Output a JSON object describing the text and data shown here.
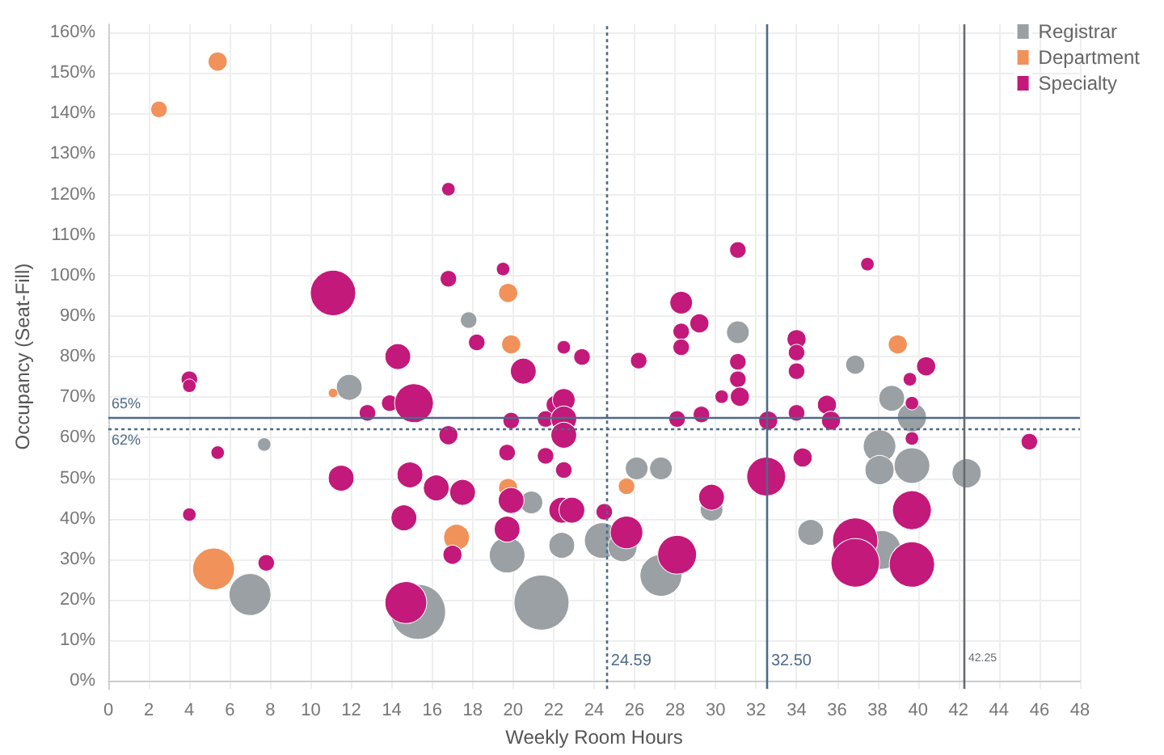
{
  "chart_data": {
    "type": "bubble",
    "xlabel": "Weekly Room Hours",
    "ylabel": "Occupancy (Seat-Fill)",
    "xlim": [
      0,
      48
    ],
    "xticks": [
      0,
      2,
      4,
      6,
      8,
      10,
      12,
      14,
      16,
      18,
      20,
      22,
      24,
      26,
      28,
      30,
      32,
      34,
      36,
      38,
      40,
      42,
      44,
      46,
      48
    ],
    "ylim": [
      -2,
      162
    ],
    "yticks": [
      {
        "value": 0,
        "label": "0%"
      },
      {
        "value": 10,
        "label": "10%"
      },
      {
        "value": 20,
        "label": "20%"
      },
      {
        "value": 30,
        "label": "30%"
      },
      {
        "value": 40,
        "label": "40%"
      },
      {
        "value": 50,
        "label": "50%"
      },
      {
        "value": 60,
        "label": "60%"
      },
      {
        "value": 70,
        "label": "70%"
      },
      {
        "value": 80,
        "label": "80%"
      },
      {
        "value": 90,
        "label": "90%"
      },
      {
        "value": 100,
        "label": "100%"
      },
      {
        "value": 110,
        "label": "110%"
      },
      {
        "value": 120,
        "label": "120%"
      },
      {
        "value": 130,
        "label": "130%"
      },
      {
        "value": 140,
        "label": "140%"
      },
      {
        "value": 150,
        "label": "150%"
      },
      {
        "value": 160,
        "label": "160%"
      }
    ],
    "grid": true,
    "legend": "top right",
    "series": [
      {
        "name": "Registrar",
        "color": "#9aa0a3",
        "x": [
          11.9,
          7.7,
          7.0,
          15.3,
          17.8,
          31.1,
          36.9,
          20.9,
          26.1,
          27.3,
          29.8,
          19.7,
          22.4,
          24.4,
          25.4,
          27.3,
          21.4,
          38.7,
          39.7,
          38.1,
          38.1,
          39.7,
          42.4,
          34.7,
          38.2
        ],
        "values": [
          72.4,
          58.3,
          21.3,
          17,
          89,
          86,
          78,
          44,
          52.4,
          52.4,
          42.2,
          31,
          33.4,
          34.6,
          33,
          26,
          19.3,
          69.7,
          65,
          57.9,
          52,
          53.1,
          51.2,
          36.6,
          32.3
        ],
        "sizes": [
          0.22,
          0.06,
          0.58,
          1,
          0.09,
          0.17,
          0.12,
          0.17,
          0.17,
          0.17,
          0.17,
          0.42,
          0.22,
          0.42,
          0.28,
          0.58,
          1,
          0.22,
          0.28,
          0.35,
          0.28,
          0.42,
          0.28,
          0.22,
          0.5
        ]
      },
      {
        "name": "Department",
        "color": "#f0925a",
        "x": [
          2.5,
          5.4,
          19.75,
          19.9,
          39,
          11.1,
          19.75,
          17.2,
          25.6,
          5.2
        ],
        "values": [
          141,
          152.8,
          95.7,
          83,
          83,
          71,
          47.6,
          35.4,
          48,
          27.6
        ],
        "sizes": [
          0.09,
          0.12,
          0.12,
          0.12,
          0.12,
          0.03,
          0.12,
          0.22,
          0.09,
          0.58
        ]
      },
      {
        "name": "Specialty",
        "color": "#c2197a",
        "x": [
          11.1,
          14.3,
          4.0,
          4.0,
          12.8,
          13.9,
          15.1,
          5.4,
          11.5,
          14.9,
          14.6,
          4.0,
          7.8,
          14.7,
          16.8,
          16.8,
          19.5,
          18.2,
          20.5,
          22.5,
          23.4,
          26.2,
          28.3,
          29.2,
          28.3,
          28.3,
          31.1,
          31.1,
          31.1,
          37.5,
          34.0,
          34.0,
          34.0,
          40.4,
          39.6,
          34.0,
          35.5,
          35.7,
          32.6,
          39.7,
          39.7,
          45.5,
          34.3,
          32.5,
          39.7,
          36.9,
          36.9,
          39.7,
          30.3,
          31.2,
          22.1,
          22.5,
          19.9,
          21.6,
          22.5,
          22.5,
          16.8,
          28.1,
          29.3,
          19.7,
          21.6,
          22.5,
          16.2,
          17.5,
          19.9,
          22.4,
          22.9,
          24.5,
          29.8,
          19.7,
          25.6,
          17.0,
          28.1
        ],
        "values": [
          95.7,
          80,
          74.4,
          72.8,
          66.1,
          68.5,
          68.5,
          56.3,
          50,
          50.8,
          40.2,
          41,
          29.1,
          19.3,
          121.3,
          99.2,
          101.6,
          83.5,
          76.4,
          82.3,
          79.9,
          79,
          93.3,
          88.2,
          86.2,
          82.3,
          106.3,
          78.7,
          74.4,
          102.8,
          84.3,
          81,
          76.4,
          77.6,
          74.4,
          66.1,
          68.1,
          64.2,
          64.2,
          68.5,
          59.8,
          59,
          55.1,
          50.4,
          42.1,
          34.6,
          29.1,
          28.7,
          70.1,
          70.1,
          68.1,
          69.3,
          64.2,
          64.6,
          64.6,
          60.6,
          60.6,
          64.6,
          65.7,
          56.3,
          55.5,
          52,
          47.6,
          46.5,
          44.5,
          42.1,
          42.1,
          41.7,
          45.3,
          37.4,
          36.6,
          31.1,
          31.1
        ],
        "sizes": [
          0.68,
          0.22,
          0.09,
          0.06,
          0.09,
          0.09,
          0.5,
          0.06,
          0.22,
          0.22,
          0.22,
          0.06,
          0.09,
          0.58,
          0.06,
          0.09,
          0.06,
          0.09,
          0.22,
          0.06,
          0.09,
          0.09,
          0.17,
          0.12,
          0.09,
          0.09,
          0.09,
          0.09,
          0.09,
          0.06,
          0.12,
          0.09,
          0.09,
          0.12,
          0.06,
          0.09,
          0.12,
          0.12,
          0.12,
          0.06,
          0.06,
          0.09,
          0.12,
          0.5,
          0.5,
          0.68,
          0.78,
          0.68,
          0.06,
          0.12,
          0.12,
          0.17,
          0.09,
          0.09,
          0.22,
          0.22,
          0.12,
          0.09,
          0.09,
          0.09,
          0.09,
          0.09,
          0.22,
          0.22,
          0.22,
          0.22,
          0.22,
          0.09,
          0.22,
          0.22,
          0.35,
          0.12,
          0.5
        ]
      }
    ],
    "ref_lines": [
      {
        "axis": "y",
        "value": 65,
        "label": "65%",
        "color": "#4d6a88",
        "line_style": "solid"
      },
      {
        "axis": "y",
        "value": 62,
        "label": "62%",
        "color": "#4d6a88",
        "line_style": "dotted"
      },
      {
        "axis": "x",
        "value": 24.59,
        "label": "24.59",
        "color": "#4d6a88",
        "line_style": "dotted"
      },
      {
        "axis": "x",
        "value": 32.5,
        "label": "32.50",
        "color": "#4d6a88",
        "line_style": "solid"
      },
      {
        "axis": "x",
        "value": 42.25,
        "label": "42.25",
        "color": "#666b70",
        "line_style": "solid"
      }
    ]
  }
}
